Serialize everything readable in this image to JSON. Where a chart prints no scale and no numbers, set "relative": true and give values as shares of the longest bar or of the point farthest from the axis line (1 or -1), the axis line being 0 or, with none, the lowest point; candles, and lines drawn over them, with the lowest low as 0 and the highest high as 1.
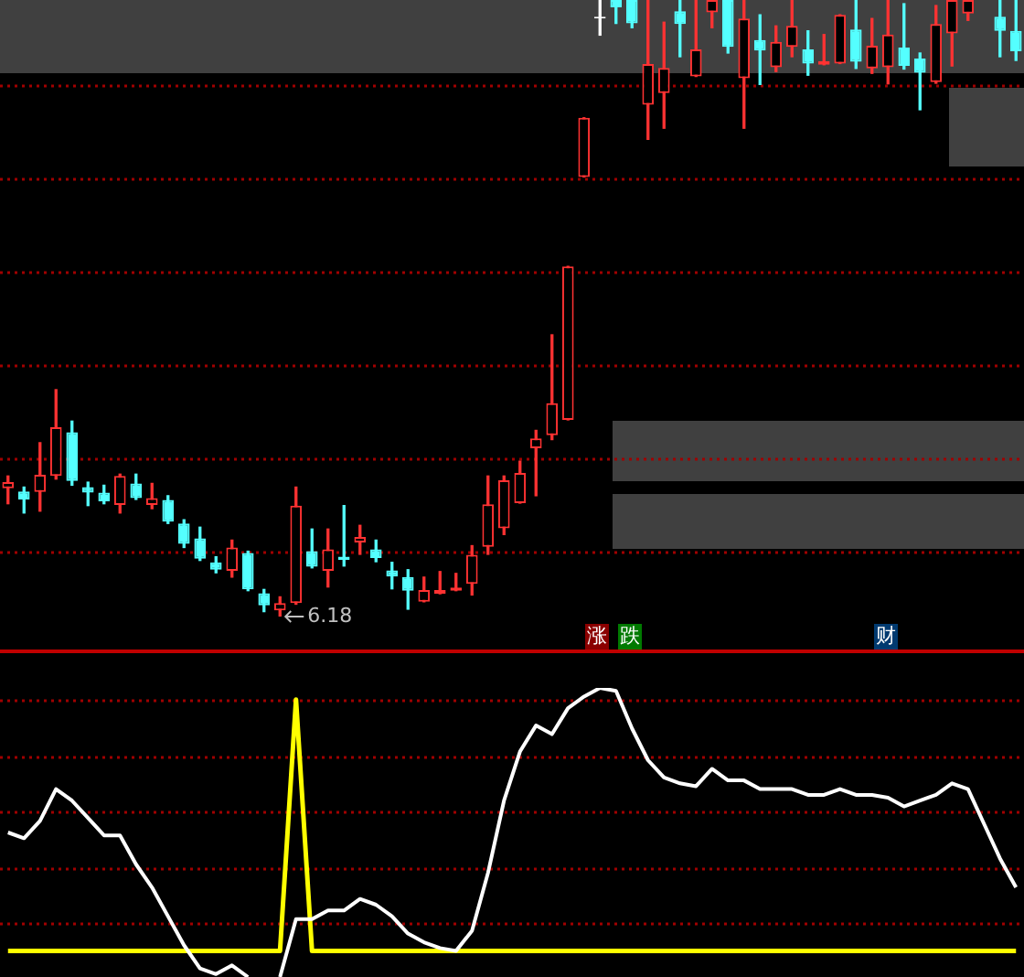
{
  "chart_data": [
    {
      "type": "candlestick",
      "relative": true,
      "ref_lines": [
        {
          "axis": "y",
          "value": 0.86,
          "color": "#a00000",
          "line_style": "dotted"
        },
        {
          "axis": "y",
          "value": 0.709,
          "color": "#a00000",
          "line_style": "dotted"
        },
        {
          "axis": "y",
          "value": 0.557,
          "color": "#a00000",
          "line_style": "dotted"
        },
        {
          "axis": "y",
          "value": 0.406,
          "color": "#a00000",
          "line_style": "dotted"
        },
        {
          "axis": "y",
          "value": 0.255,
          "color": "#a00000",
          "line_style": "dotted"
        },
        {
          "axis": "y",
          "value": 0.103,
          "color": "#a00000",
          "line_style": "dotted"
        }
      ],
      "categories": [
        null,
        null,
        null,
        null,
        null,
        null,
        null,
        null,
        null,
        null,
        null,
        null,
        null,
        null,
        null,
        null,
        null,
        null,
        null,
        null,
        null,
        null,
        null,
        null,
        null,
        null,
        null,
        null,
        null,
        null,
        null,
        null,
        null,
        null,
        null,
        null,
        null,
        null,
        null,
        null,
        null,
        null,
        null,
        null,
        null,
        null,
        null,
        null,
        null,
        null,
        null,
        null,
        null,
        null,
        null,
        null,
        null,
        null,
        null,
        null,
        null,
        null,
        null,
        null
      ],
      "ohlc": [
        [
          0.208,
          0.228,
          0.183,
          0.218
        ],
        [
          0.203,
          0.21,
          0.168,
          0.19
        ],
        [
          0.202,
          0.282,
          0.171,
          0.23
        ],
        [
          0.228,
          0.368,
          0.223,
          0.307
        ],
        [
          0.299,
          0.317,
          0.213,
          0.22
        ],
        [
          0.21,
          0.218,
          0.18,
          0.201
        ],
        [
          0.201,
          0.213,
          0.183,
          0.187
        ],
        [
          0.181,
          0.231,
          0.168,
          0.228
        ],
        [
          0.216,
          0.231,
          0.19,
          0.192
        ],
        [
          0.181,
          0.216,
          0.175,
          0.192
        ],
        [
          0.189,
          0.196,
          0.151,
          0.154
        ],
        [
          0.151,
          0.157,
          0.112,
          0.118
        ],
        [
          0.127,
          0.145,
          0.091,
          0.094
        ],
        [
          0.088,
          0.097,
          0.071,
          0.076
        ],
        [
          0.074,
          0.124,
          0.064,
          0.112
        ],
        [
          0.103,
          0.106,
          0.042,
          0.044
        ],
        [
          0.038,
          0.044,
          0.008,
          0.018
        ],
        [
          0.01,
          0.032,
          0,
          0.022
        ],
        [
          0.022,
          0.21,
          0.02,
          0.18
        ],
        [
          0.106,
          0.142,
          0.079,
          0.081
        ],
        [
          0.074,
          0.142,
          0.048,
          0.109
        ],
        [
          0.097,
          0.18,
          0.082,
          0.092
        ],
        [
          0.12,
          0.148,
          0.101,
          0.129
        ],
        [
          0.109,
          0.124,
          0.089,
          0.095
        ],
        [
          0.075,
          0.088,
          0.045,
          0.065
        ],
        [
          0.064,
          0.076,
          0.012,
          0.042
        ],
        [
          0.024,
          0.064,
          0.024,
          0.043
        ],
        [
          0.037,
          0.073,
          0.037,
          0.043
        ],
        [
          0.042,
          0.07,
          0.042,
          0.047
        ],
        [
          0.053,
          0.115,
          0.035,
          0.1
        ],
        [
          0.113,
          0.228,
          0.101,
          0.182
        ],
        [
          0.143,
          0.228,
          0.133,
          0.221
        ],
        [
          0.184,
          0.252,
          0.184,
          0.233
        ],
        [
          0.273,
          0.302,
          0.196,
          0.289
        ],
        [
          0.294,
          0.457,
          0.287,
          0.346
        ],
        [
          0.319,
          0.568,
          0.319,
          0.568
        ],
        [
          0.713,
          0.809,
          0.713,
          0.809
        ],
        [
          0.97,
          1,
          0.943,
          0.97
        ],
        [
          1,
          1,
          0.962,
          0.988
        ],
        [
          1,
          1,
          0.955,
          0.962
        ],
        [
          0.83,
          1,
          0.774,
          0.896
        ],
        [
          0.849,
          0.964,
          0.792,
          0.89
        ],
        [
          0.982,
          1,
          0.908,
          0.961
        ],
        [
          0.876,
          1,
          0.876,
          0.92
        ],
        [
          0.98,
          1,
          0.955,
          1
        ],
        [
          1,
          1,
          0.914,
          0.924
        ],
        [
          0.873,
          1,
          0.792,
          0.97
        ],
        [
          0.935,
          0.976,
          0.863,
          0.918
        ],
        [
          0.891,
          0.958,
          0.884,
          0.932
        ],
        [
          0.924,
          1,
          0.908,
          0.958
        ],
        [
          0.92,
          0.95,
          0.878,
          0.897
        ],
        [
          0.895,
          0.944,
          0.895,
          0.901
        ],
        [
          0.897,
          0.976,
          0.897,
          0.976
        ],
        [
          0.952,
          1,
          0.889,
          0.9
        ],
        [
          0.889,
          0.97,
          0.881,
          0.926
        ],
        [
          0.891,
          1,
          0.864,
          0.944
        ],
        [
          0.923,
          0.994,
          0.888,
          0.893
        ],
        [
          0.905,
          0.914,
          0.822,
          0.882
        ],
        [
          0.867,
          0.991,
          0.865,
          0.961
        ],
        [
          0.946,
          1,
          0.893,
          1
        ],
        [
          0.978,
          1,
          0.967,
          1
        ],
        null,
        [
          0.973,
          1,
          0.908,
          0.95
        ],
        [
          0.95,
          1,
          0.902,
          0.917
        ]
      ],
      "annotations": [
        "6.18",
        "涨",
        "跌",
        "财"
      ]
    },
    {
      "type": "line",
      "relative": true,
      "ref_lines": [
        {
          "axis": "y",
          "value": 0.956,
          "color": "#a00000",
          "line_style": "dotted"
        },
        {
          "axis": "y",
          "value": 0.759,
          "color": "#a00000",
          "line_style": "dotted"
        },
        {
          "axis": "y",
          "value": 0.57,
          "color": "#a00000",
          "line_style": "dotted"
        },
        {
          "axis": "y",
          "value": 0.373,
          "color": "#a00000",
          "line_style": "dotted"
        },
        {
          "axis": "y",
          "value": 0.184,
          "color": "#a00000",
          "line_style": "dotted"
        }
      ],
      "categories": [
        null,
        null,
        null,
        null,
        null,
        null,
        null,
        null,
        null,
        null,
        null,
        null,
        null,
        null,
        null,
        null,
        null,
        null,
        null,
        null,
        null,
        null,
        null,
        null,
        null,
        null,
        null,
        null,
        null,
        null,
        null,
        null,
        null,
        null,
        null,
        null,
        null,
        null,
        null,
        null,
        null,
        null,
        null,
        null,
        null,
        null,
        null,
        null,
        null,
        null,
        null,
        null,
        null,
        null,
        null,
        null,
        null,
        null,
        null,
        null,
        null,
        null,
        null,
        null
      ],
      "series": [
        {
          "color": "#ffffff",
          "values": [
            0.5,
            0.48,
            0.54,
            0.65,
            0.61,
            0.55,
            0.49,
            0.49,
            0.39,
            0.31,
            0.21,
            0.11,
            0.03,
            0.01,
            0.04,
            0,
            null,
            0,
            0.2,
            0.2,
            0.23,
            0.23,
            0.27,
            0.25,
            0.21,
            0.15,
            0.12,
            0.1,
            0.09,
            0.16,
            0.36,
            0.61,
            0.78,
            0.87,
            0.84,
            0.93,
            0.97,
            1,
            0.99,
            0.86,
            0.75,
            0.69,
            0.67,
            0.66,
            0.72,
            0.68,
            0.68,
            0.65,
            0.65,
            0.65,
            0.63,
            0.63,
            0.65,
            0.63,
            0.63,
            0.62,
            0.59,
            0.61,
            0.63,
            0.67,
            0.65,
            0.53,
            0.41,
            0.31
          ]
        },
        {
          "color": "#ffff00",
          "values": [
            0.09,
            0.09,
            0.09,
            0.09,
            0.09,
            0.09,
            0.09,
            0.09,
            0.09,
            0.09,
            0.09,
            0.09,
            0.09,
            0.09,
            0.09,
            0.09,
            0.09,
            0.09,
            0.96,
            0.09,
            0.09,
            0.09,
            0.09,
            0.09,
            0.09,
            0.09,
            0.09,
            0.09,
            0.09,
            0.09,
            0.09,
            0.09,
            0.09,
            0.09,
            0.09,
            0.09,
            0.09,
            0.09,
            0.09,
            0.09,
            0.09,
            0.09,
            0.09,
            0.09,
            0.09,
            0.09,
            0.09,
            0.09,
            0.09,
            0.09,
            0.09,
            0.09,
            0.09,
            0.09,
            0.09,
            0.09,
            0.09,
            0.09,
            0.09,
            0.09,
            0.09,
            0.09,
            0.09,
            0.09
          ]
        }
      ]
    }
  ]
}
